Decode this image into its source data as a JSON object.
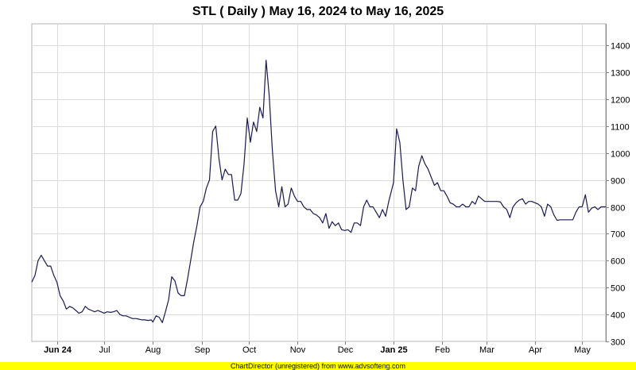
{
  "chart_data": {
    "type": "line",
    "title": "STL ( Daily ) May 16, 2024 to May 16, 2025",
    "xlabel": "",
    "ylabel": "",
    "x_range": [
      "2024-05-16",
      "2025-05-16"
    ],
    "ylim": [
      300,
      1480
    ],
    "y_ticks": [
      300,
      400,
      500,
      600,
      700,
      800,
      900,
      1000,
      1100,
      1200,
      1300,
      1400
    ],
    "x_ticks": [
      {
        "date": "2024-06-01",
        "label": "Jun 24",
        "bold": true
      },
      {
        "date": "2024-07-01",
        "label": "Jul",
        "bold": false
      },
      {
        "date": "2024-08-01",
        "label": "Aug",
        "bold": false
      },
      {
        "date": "2024-09-01",
        "label": "Sep",
        "bold": false
      },
      {
        "date": "2024-10-01",
        "label": "Oct",
        "bold": false
      },
      {
        "date": "2024-11-01",
        "label": "Nov",
        "bold": false
      },
      {
        "date": "2024-12-01",
        "label": "Dec",
        "bold": false
      },
      {
        "date": "2025-01-01",
        "label": "Jan 25",
        "bold": true
      },
      {
        "date": "2025-02-01",
        "label": "Feb",
        "bold": false
      },
      {
        "date": "2025-03-01",
        "label": "Mar",
        "bold": false
      },
      {
        "date": "2025-04-01",
        "label": "Apr",
        "bold": false
      },
      {
        "date": "2025-05-01",
        "label": "May",
        "bold": false
      }
    ],
    "grid": true,
    "line_color": "#1a1a4e",
    "series": [
      {
        "name": "",
        "points": [
          [
            "2024-05-16",
            520
          ],
          [
            "2024-05-18",
            545
          ],
          [
            "2024-05-20",
            600
          ],
          [
            "2024-05-22",
            620
          ],
          [
            "2024-05-24",
            600
          ],
          [
            "2024-05-26",
            580
          ],
          [
            "2024-05-28",
            580
          ],
          [
            "2024-05-30",
            545
          ],
          [
            "2024-06-01",
            520
          ],
          [
            "2024-06-03",
            470
          ],
          [
            "2024-06-05",
            450
          ],
          [
            "2024-06-07",
            420
          ],
          [
            "2024-06-09",
            430
          ],
          [
            "2024-06-11",
            425
          ],
          [
            "2024-06-13",
            415
          ],
          [
            "2024-06-15",
            405
          ],
          [
            "2024-06-17",
            410
          ],
          [
            "2024-06-19",
            430
          ],
          [
            "2024-06-21",
            420
          ],
          [
            "2024-06-23",
            415
          ],
          [
            "2024-06-25",
            410
          ],
          [
            "2024-06-27",
            415
          ],
          [
            "2024-06-29",
            410
          ],
          [
            "2024-07-01",
            405
          ],
          [
            "2024-07-03",
            410
          ],
          [
            "2024-07-05",
            408
          ],
          [
            "2024-07-07",
            410
          ],
          [
            "2024-07-09",
            415
          ],
          [
            "2024-07-11",
            400
          ],
          [
            "2024-07-13",
            395
          ],
          [
            "2024-07-15",
            395
          ],
          [
            "2024-07-17",
            390
          ],
          [
            "2024-07-19",
            385
          ],
          [
            "2024-07-21",
            385
          ],
          [
            "2024-07-23",
            383
          ],
          [
            "2024-07-25",
            380
          ],
          [
            "2024-07-27",
            380
          ],
          [
            "2024-07-29",
            378
          ],
          [
            "2024-07-31",
            380
          ],
          [
            "2024-08-01",
            372
          ],
          [
            "2024-08-03",
            395
          ],
          [
            "2024-08-05",
            390
          ],
          [
            "2024-08-07",
            370
          ],
          [
            "2024-08-09",
            410
          ],
          [
            "2024-08-11",
            455
          ],
          [
            "2024-08-13",
            540
          ],
          [
            "2024-08-15",
            525
          ],
          [
            "2024-08-17",
            480
          ],
          [
            "2024-08-19",
            470
          ],
          [
            "2024-08-21",
            470
          ],
          [
            "2024-08-23",
            530
          ],
          [
            "2024-08-25",
            600
          ],
          [
            "2024-08-27",
            670
          ],
          [
            "2024-08-29",
            730
          ],
          [
            "2024-08-31",
            800
          ],
          [
            "2024-09-02",
            820
          ],
          [
            "2024-09-04",
            870
          ],
          [
            "2024-09-06",
            900
          ],
          [
            "2024-09-08",
            1080
          ],
          [
            "2024-09-10",
            1100
          ],
          [
            "2024-09-12",
            980
          ],
          [
            "2024-09-14",
            900
          ],
          [
            "2024-09-16",
            940
          ],
          [
            "2024-09-18",
            920
          ],
          [
            "2024-09-20",
            920
          ],
          [
            "2024-09-22",
            825
          ],
          [
            "2024-09-24",
            825
          ],
          [
            "2024-09-26",
            850
          ],
          [
            "2024-09-28",
            960
          ],
          [
            "2024-09-30",
            1130
          ],
          [
            "2024-10-02",
            1040
          ],
          [
            "2024-10-04",
            1115
          ],
          [
            "2024-10-06",
            1080
          ],
          [
            "2024-10-08",
            1170
          ],
          [
            "2024-10-10",
            1130
          ],
          [
            "2024-10-12",
            1345
          ],
          [
            "2024-10-14",
            1210
          ],
          [
            "2024-10-16",
            1010
          ],
          [
            "2024-10-18",
            860
          ],
          [
            "2024-10-20",
            800
          ],
          [
            "2024-10-22",
            875
          ],
          [
            "2024-10-24",
            800
          ],
          [
            "2024-10-26",
            810
          ],
          [
            "2024-10-28",
            870
          ],
          [
            "2024-10-30",
            840
          ],
          [
            "2024-11-01",
            820
          ],
          [
            "2024-11-03",
            820
          ],
          [
            "2024-11-05",
            800
          ],
          [
            "2024-11-07",
            790
          ],
          [
            "2024-11-09",
            790
          ],
          [
            "2024-11-11",
            775
          ],
          [
            "2024-11-13",
            770
          ],
          [
            "2024-11-15",
            760
          ],
          [
            "2024-11-17",
            740
          ],
          [
            "2024-11-19",
            775
          ],
          [
            "2024-11-21",
            720
          ],
          [
            "2024-11-23",
            745
          ],
          [
            "2024-11-25",
            730
          ],
          [
            "2024-11-27",
            740
          ],
          [
            "2024-11-29",
            715
          ],
          [
            "2024-12-01",
            712
          ],
          [
            "2024-12-03",
            715
          ],
          [
            "2024-12-05",
            705
          ],
          [
            "2024-12-07",
            740
          ],
          [
            "2024-12-09",
            740
          ],
          [
            "2024-12-11",
            730
          ],
          [
            "2024-12-13",
            800
          ],
          [
            "2024-12-15",
            825
          ],
          [
            "2024-12-17",
            800
          ],
          [
            "2024-12-19",
            800
          ],
          [
            "2024-12-21",
            780
          ],
          [
            "2024-12-23",
            760
          ],
          [
            "2024-12-25",
            790
          ],
          [
            "2024-12-27",
            765
          ],
          [
            "2024-12-29",
            820
          ],
          [
            "2025-01-01",
            890
          ],
          [
            "2025-01-03",
            1090
          ],
          [
            "2025-01-05",
            1040
          ],
          [
            "2025-01-07",
            900
          ],
          [
            "2025-01-09",
            790
          ],
          [
            "2025-01-11",
            800
          ],
          [
            "2025-01-13",
            870
          ],
          [
            "2025-01-15",
            860
          ],
          [
            "2025-01-17",
            950
          ],
          [
            "2025-01-19",
            990
          ],
          [
            "2025-01-21",
            960
          ],
          [
            "2025-01-23",
            940
          ],
          [
            "2025-01-25",
            910
          ],
          [
            "2025-01-27",
            880
          ],
          [
            "2025-01-29",
            890
          ],
          [
            "2025-01-31",
            860
          ],
          [
            "2025-02-02",
            860
          ],
          [
            "2025-02-04",
            840
          ],
          [
            "2025-02-06",
            815
          ],
          [
            "2025-02-08",
            810
          ],
          [
            "2025-02-10",
            800
          ],
          [
            "2025-02-12",
            800
          ],
          [
            "2025-02-14",
            810
          ],
          [
            "2025-02-16",
            800
          ],
          [
            "2025-02-18",
            800
          ],
          [
            "2025-02-20",
            820
          ],
          [
            "2025-02-22",
            810
          ],
          [
            "2025-02-24",
            840
          ],
          [
            "2025-02-26",
            830
          ],
          [
            "2025-02-28",
            820
          ],
          [
            "2025-03-02",
            820
          ],
          [
            "2025-03-04",
            820
          ],
          [
            "2025-03-06",
            820
          ],
          [
            "2025-03-08",
            820
          ],
          [
            "2025-03-10",
            818
          ],
          [
            "2025-03-12",
            800
          ],
          [
            "2025-03-14",
            790
          ],
          [
            "2025-03-16",
            760
          ],
          [
            "2025-03-18",
            800
          ],
          [
            "2025-03-20",
            815
          ],
          [
            "2025-03-22",
            825
          ],
          [
            "2025-03-24",
            830
          ],
          [
            "2025-03-26",
            810
          ],
          [
            "2025-03-28",
            820
          ],
          [
            "2025-03-30",
            820
          ],
          [
            "2025-04-01",
            815
          ],
          [
            "2025-04-03",
            810
          ],
          [
            "2025-04-05",
            800
          ],
          [
            "2025-04-07",
            765
          ],
          [
            "2025-04-09",
            810
          ],
          [
            "2025-04-11",
            800
          ],
          [
            "2025-04-13",
            770
          ],
          [
            "2025-04-15",
            750
          ],
          [
            "2025-04-17",
            752
          ],
          [
            "2025-04-19",
            752
          ],
          [
            "2025-04-21",
            752
          ],
          [
            "2025-04-23",
            752
          ],
          [
            "2025-04-25",
            752
          ],
          [
            "2025-04-27",
            780
          ],
          [
            "2025-04-29",
            800
          ],
          [
            "2025-05-01",
            800
          ],
          [
            "2025-05-03",
            845
          ],
          [
            "2025-05-05",
            780
          ],
          [
            "2025-05-07",
            795
          ],
          [
            "2025-05-09",
            800
          ],
          [
            "2025-05-11",
            790
          ],
          [
            "2025-05-13",
            800
          ],
          [
            "2025-05-16",
            800
          ]
        ]
      }
    ]
  },
  "footer": {
    "text": "ChartDirector (unregistered) from www.advsofteng.com"
  }
}
